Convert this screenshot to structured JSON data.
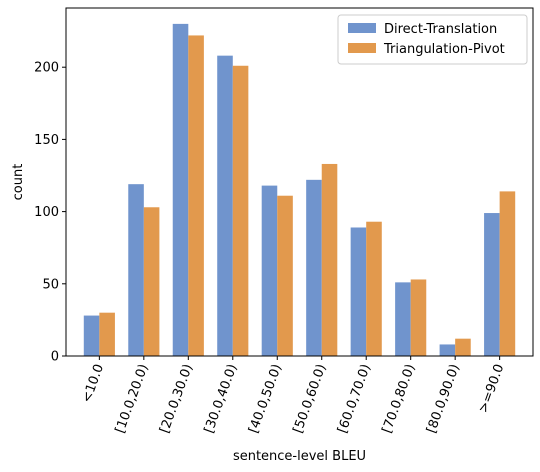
{
  "chart_data": {
    "type": "bar",
    "title": "",
    "xlabel": "sentence-level BLEU",
    "ylabel": "count",
    "ylim": [
      0,
      241
    ],
    "yticks": [
      0,
      50,
      100,
      150,
      200
    ],
    "categories": [
      "<10.0",
      "[10.0,20.0)",
      "[20.0,30.0)",
      "[30.0,40.0)",
      "[40.0,50.0)",
      "[50.0,60.0)",
      "[60.0,70.0)",
      "[70.0,80.0)",
      "[80.0,90.0)",
      ">=90.0"
    ],
    "series": [
      {
        "name": "Direct-Translation",
        "color": "#7094cd",
        "values": [
          28,
          119,
          230,
          208,
          118,
          122,
          89,
          51,
          8,
          99
        ]
      },
      {
        "name": "Triangulation-Pivot",
        "color": "#e2994d",
        "values": [
          30,
          103,
          222,
          201,
          111,
          133,
          93,
          53,
          12,
          114
        ]
      }
    ],
    "legend": "top-right",
    "grid": false
  }
}
